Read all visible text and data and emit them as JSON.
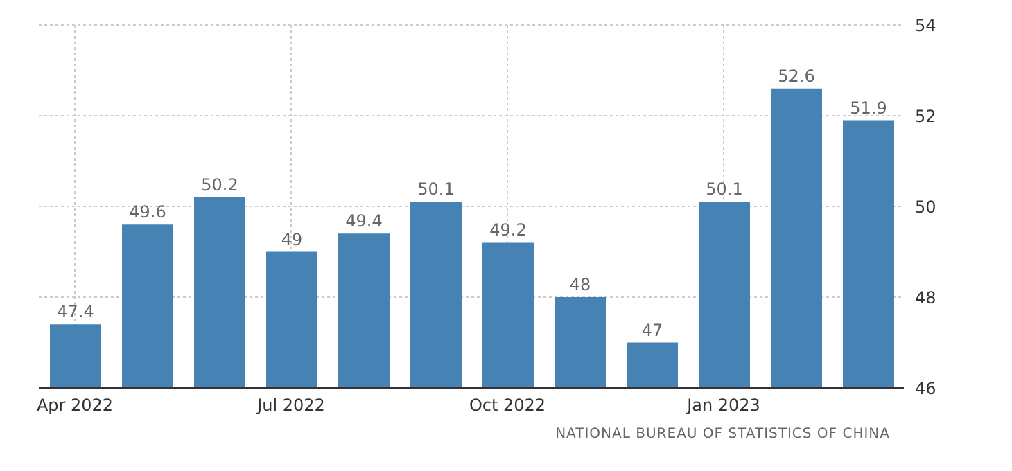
{
  "chart_data": {
    "type": "bar",
    "categories": [
      "Apr 2022",
      null,
      null,
      "Jul 2022",
      null,
      null,
      "Oct 2022",
      null,
      null,
      "Jan 2023",
      null,
      null
    ],
    "values": [
      47.4,
      49.6,
      50.2,
      49,
      49.4,
      50.1,
      49.2,
      48,
      47,
      50.1,
      52.6,
      51.9
    ],
    "color": "#4682b4",
    "ylim": [
      46,
      54
    ],
    "yticks": [
      46,
      48,
      50,
      52,
      54
    ],
    "grid": true,
    "data_labels": true,
    "annotations": [
      "NATIONAL BUREAU OF STATISTICS OF CHINA"
    ]
  }
}
